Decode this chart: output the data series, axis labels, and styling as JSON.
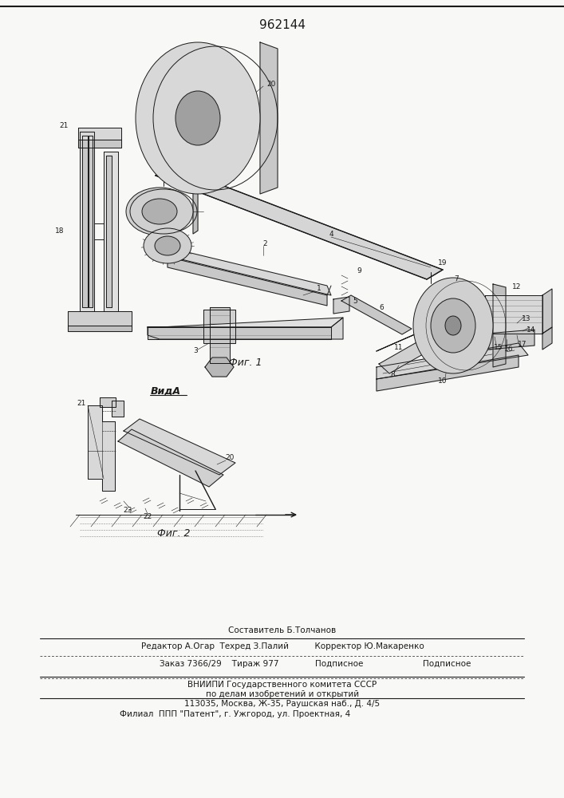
{
  "patent_number": "962144",
  "background_color": "#f8f8f6",
  "fig_width": 7.07,
  "fig_height": 10.0,
  "dpi": 100,
  "patent_num_fontsize": 11,
  "footer_line1": "Составитель Б.Толчанов",
  "footer_line2": "Редактор А.Огар  Техред З.Палий          Корректор Ю.Макаренко",
  "footer_line3": "Заказ 7366/29    Тираж 977              Подписное",
  "footer_line4": "ВНИИПИ Государственного комитета СССР",
  "footer_line5": "по делам изобретений и открытий",
  "footer_line6": "113035, Москва, Ж-35, Раушская наб., Д. 4/5",
  "footer_line7": "Филиал  ППП \"Патент\", г. Ужгород, ул. Проектная, 4",
  "fig1_label": "Фиг. 1",
  "fig2_label": "Фиг. 2",
  "vida_label": "ВидА"
}
